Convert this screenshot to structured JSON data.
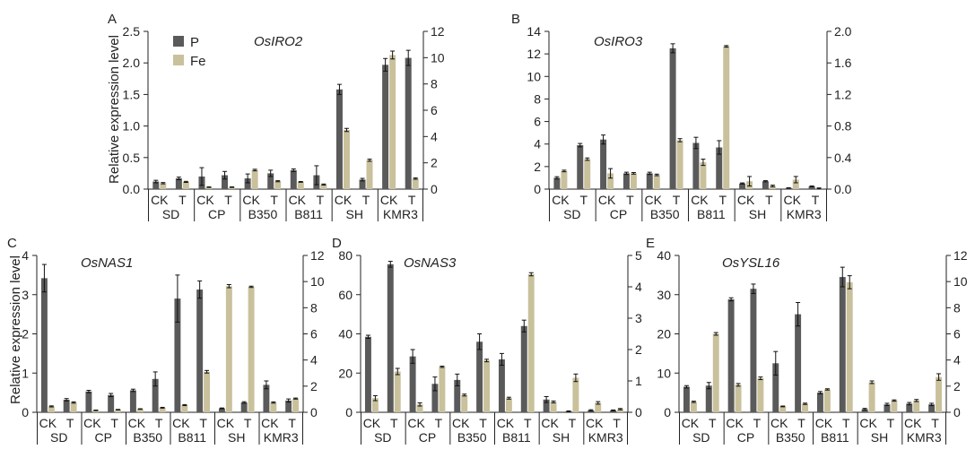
{
  "colors": {
    "P": "#5a5a5a",
    "Fe": "#c9c19c",
    "axis": "#222222",
    "error": "#111111"
  },
  "legend": [
    {
      "key": "P",
      "label": "P"
    },
    {
      "key": "Fe",
      "label": "Fe"
    }
  ],
  "y_axis_label": "Relative expression level",
  "chart_data": [
    {
      "panel": "A",
      "type": "bar",
      "title": "OsIRO2",
      "groups": [
        "SD",
        "CP",
        "B350",
        "B811",
        "SH",
        "KMR3"
      ],
      "subcategories": [
        "CK",
        "T"
      ],
      "left_ylim": [
        0,
        2.5
      ],
      "left_ticks": [
        "0.0",
        "0.5",
        "1.0",
        "1.5",
        "2.0",
        "2.5"
      ],
      "right_ylim": [
        0,
        12
      ],
      "right_ticks": [
        "0",
        "2",
        "4",
        "6",
        "8",
        "10",
        "12"
      ],
      "series": [
        {
          "name": "P",
          "axis": "left",
          "values": [
            0.12,
            0.17,
            0.2,
            0.22,
            0.17,
            0.25,
            0.3,
            0.22,
            1.58,
            0.15,
            1.97,
            2.08
          ],
          "errors": [
            0.02,
            0.02,
            0.14,
            0.06,
            0.07,
            0.05,
            0.02,
            0.15,
            0.08,
            0.02,
            0.1,
            0.12
          ]
        },
        {
          "name": "Fe",
          "axis": "right",
          "values": [
            0.45,
            0.55,
            0.15,
            0.15,
            1.45,
            0.6,
            0.55,
            0.35,
            4.5,
            2.2,
            10.2,
            0.8
          ],
          "errors": [
            0.05,
            0.04,
            0.02,
            0.02,
            0.06,
            0.04,
            0.03,
            0.04,
            0.12,
            0.08,
            0.3,
            0.05
          ]
        }
      ]
    },
    {
      "panel": "B",
      "type": "bar",
      "title": "OsIRO3",
      "groups": [
        "SD",
        "CP",
        "B350",
        "B811",
        "SH",
        "KMR3"
      ],
      "subcategories": [
        "CK",
        "T"
      ],
      "left_ylim": [
        0,
        14
      ],
      "left_ticks": [
        "0",
        "2",
        "4",
        "6",
        "8",
        "10",
        "12",
        "14"
      ],
      "right_ylim": [
        0,
        2.0
      ],
      "right_ticks": [
        "0.0",
        "0.4",
        "0.8",
        "1.2",
        "1.6",
        "2.0"
      ],
      "series": [
        {
          "name": "P",
          "axis": "left",
          "values": [
            1.0,
            3.9,
            4.4,
            1.4,
            1.4,
            12.5,
            4.1,
            3.7,
            0.5,
            0.7,
            0.1,
            0.25
          ],
          "errors": [
            0.1,
            0.15,
            0.4,
            0.1,
            0.1,
            0.4,
            0.5,
            0.6,
            0.05,
            0.05,
            0.02,
            0.03
          ]
        },
        {
          "name": "Fe",
          "axis": "right",
          "values": [
            0.23,
            0.38,
            0.2,
            0.2,
            0.18,
            0.62,
            0.34,
            1.81,
            0.1,
            0.04,
            0.12,
            0.01
          ],
          "errors": [
            0.01,
            0.015,
            0.06,
            0.01,
            0.01,
            0.02,
            0.04,
            0.01,
            0.06,
            0.01,
            0.04,
            0.005
          ]
        }
      ]
    },
    {
      "panel": "C",
      "type": "bar",
      "title": "OsNAS1",
      "groups": [
        "SD",
        "CP",
        "B350",
        "B811",
        "SH",
        "KMR3"
      ],
      "subcategories": [
        "CK",
        "T"
      ],
      "left_ylim": [
        0,
        4
      ],
      "left_ticks": [
        "0",
        "1",
        "2",
        "3",
        "4"
      ],
      "right_ylim": [
        0,
        12
      ],
      "right_ticks": [
        "0",
        "2",
        "4",
        "6",
        "8",
        "10",
        "12"
      ],
      "series": [
        {
          "name": "P",
          "axis": "left",
          "values": [
            3.42,
            0.32,
            0.53,
            0.44,
            0.56,
            0.85,
            2.9,
            3.13,
            0.1,
            0.25,
            0.7,
            0.3
          ],
          "errors": [
            0.35,
            0.03,
            0.03,
            0.04,
            0.03,
            0.18,
            0.6,
            0.22,
            0.01,
            0.02,
            0.1,
            0.04
          ]
        },
        {
          "name": "Fe",
          "axis": "right",
          "values": [
            0.45,
            0.75,
            0.15,
            0.2,
            0.25,
            0.35,
            0.55,
            3.1,
            9.65,
            9.6,
            0.75,
            1.05
          ],
          "errors": [
            0.04,
            0.05,
            0.02,
            0.02,
            0.02,
            0.03,
            0.04,
            0.1,
            0.12,
            0.05,
            0.05,
            0.04
          ]
        }
      ]
    },
    {
      "panel": "D",
      "type": "bar",
      "title": "OsNAS3",
      "groups": [
        "SD",
        "CP",
        "B350",
        "B811",
        "SH",
        "KMR3"
      ],
      "subcategories": [
        "CK",
        "T"
      ],
      "left_ylim": [
        0,
        80
      ],
      "left_ticks": [
        "0",
        "20",
        "40",
        "60",
        "80"
      ],
      "right_ylim": [
        0,
        5
      ],
      "right_ticks": [
        "0",
        "1",
        "2",
        "3",
        "4",
        "5"
      ],
      "series": [
        {
          "name": "P",
          "axis": "left",
          "values": [
            38.5,
            75.5,
            28.5,
            14.5,
            16.5,
            36.0,
            27.0,
            44.0,
            6.5,
            0.5,
            1.0,
            1.0
          ],
          "errors": [
            0.8,
            1.5,
            3.5,
            3.5,
            3.0,
            4.0,
            3.0,
            3.0,
            1.5,
            0.2,
            0.3,
            0.2
          ]
        },
        {
          "name": "Fe",
          "axis": "right",
          "values": [
            0.45,
            1.3,
            0.25,
            1.45,
            0.55,
            1.65,
            0.45,
            4.4,
            0.33,
            1.1,
            0.3,
            0.1
          ],
          "errors": [
            0.08,
            0.1,
            0.05,
            0.02,
            0.03,
            0.04,
            0.03,
            0.05,
            0.03,
            0.12,
            0.04,
            0.02
          ]
        }
      ]
    },
    {
      "panel": "E",
      "type": "bar",
      "title": "OsYSL16",
      "groups": [
        "SD",
        "CP",
        "B350",
        "B811",
        "SH",
        "KMR3"
      ],
      "subcategories": [
        "CK",
        "T"
      ],
      "left_ylim": [
        0,
        40
      ],
      "left_ticks": [
        "0",
        "10",
        "20",
        "30",
        "40"
      ],
      "right_ylim": [
        0,
        12
      ],
      "right_ticks": [
        "0",
        "2",
        "4",
        "6",
        "8",
        "10",
        "12"
      ],
      "series": [
        {
          "name": "P",
          "axis": "left",
          "values": [
            6.5,
            6.8,
            28.8,
            31.5,
            12.5,
            25.0,
            5.0,
            34.5,
            0.8,
            2.0,
            2.2,
            2.0
          ],
          "errors": [
            0.3,
            0.8,
            0.4,
            1.2,
            3.0,
            3.0,
            0.3,
            2.5,
            0.2,
            0.3,
            0.3,
            0.3
          ]
        },
        {
          "name": "Fe",
          "axis": "right",
          "values": [
            0.8,
            6.0,
            2.1,
            2.6,
            0.45,
            0.65,
            1.75,
            9.95,
            2.3,
            0.9,
            0.9,
            2.7
          ],
          "errors": [
            0.05,
            0.1,
            0.1,
            0.1,
            0.03,
            0.05,
            0.05,
            0.5,
            0.1,
            0.05,
            0.08,
            0.25
          ]
        }
      ]
    }
  ]
}
